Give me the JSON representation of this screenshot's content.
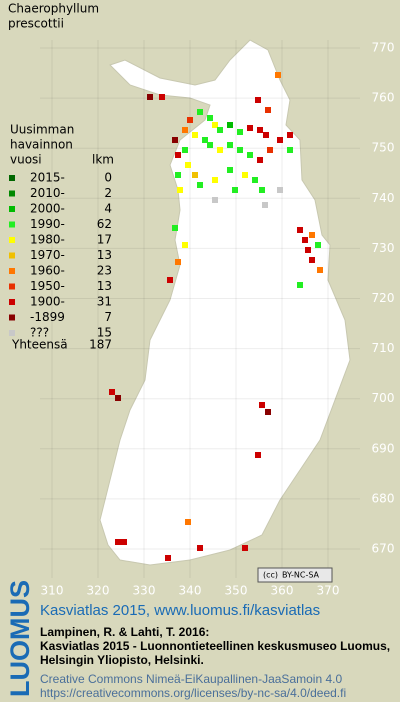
{
  "title": [
    "Chaerophyllum",
    "prescottii"
  ],
  "legend": {
    "header": [
      "Uusimman",
      "havainnon",
      "vuosi"
    ],
    "count_header": "lkm",
    "rows": [
      {
        "label": "2015-",
        "count": 0,
        "color": "#006600"
      },
      {
        "label": "2010-",
        "count": 2,
        "color": "#008800"
      },
      {
        "label": "2000-",
        "count": 4,
        "color": "#00bb00"
      },
      {
        "label": "1990-",
        "count": 62,
        "color": "#22ee22"
      },
      {
        "label": "1980-",
        "count": 17,
        "color": "#ffff00"
      },
      {
        "label": "1970-",
        "count": 13,
        "color": "#f0c000"
      },
      {
        "label": "1960-",
        "count": 23,
        "color": "#ff7700"
      },
      {
        "label": "1950-",
        "count": 13,
        "color": "#e83000"
      },
      {
        "label": "1900-",
        "count": 31,
        "color": "#cc0000"
      },
      {
        "label": "-1899",
        "count": 7,
        "color": "#880000"
      },
      {
        "label": "???",
        "count": 15,
        "color": "#c8c8c8"
      }
    ],
    "total": {
      "label": "Yhteensä",
      "count": 187
    }
  },
  "grid": {
    "xticks": [
      310,
      320,
      330,
      340,
      350,
      360,
      370
    ],
    "yticks": [
      770,
      760,
      750,
      740,
      730,
      720,
      710,
      700,
      690,
      680,
      670
    ]
  },
  "license_badge": "BY-NC-SA",
  "footer": {
    "logo": "LUOMUS",
    "site": "Kasviatlas 2015, www.luomus.fi/kasviatlas",
    "citation": [
      "Lampinen, R. & Lahti, T. 2016:",
      "Kasviatlas 2015 - Luonnontieteellinen keskusmuseo Luomus,",
      "Helsingin Yliopisto, Helsinki."
    ],
    "license": [
      "Creative Commons Nimeä-EiKaupallinen-JaaSamoin 4.0",
      "https://creativecommons.org/licenses/by-nc-sa/4.0/deed.fi"
    ]
  }
}
